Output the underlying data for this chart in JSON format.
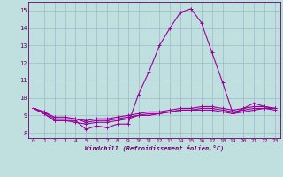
{
  "xlabel": "Windchill (Refroidissement éolien,°C)",
  "background_color": "#c0e0e0",
  "grid_color": "#a0b8c8",
  "line_color": "#990099",
  "xlim": [
    -0.5,
    23.5
  ],
  "ylim": [
    7.7,
    15.5
  ],
  "xticks": [
    0,
    1,
    2,
    3,
    4,
    5,
    6,
    7,
    8,
    9,
    10,
    11,
    12,
    13,
    14,
    15,
    16,
    17,
    18,
    19,
    20,
    21,
    22,
    23
  ],
  "yticks": [
    8,
    9,
    10,
    11,
    12,
    13,
    14,
    15
  ],
  "series": [
    [
      9.4,
      9.1,
      8.7,
      8.7,
      8.7,
      8.2,
      8.4,
      8.3,
      8.5,
      8.5,
      10.2,
      11.5,
      13.0,
      14.0,
      14.9,
      15.1,
      14.3,
      12.6,
      10.9,
      9.1,
      9.4,
      9.7,
      9.5,
      9.4
    ],
    [
      9.4,
      9.1,
      8.7,
      8.7,
      8.6,
      8.5,
      8.6,
      8.6,
      8.7,
      8.8,
      9.0,
      9.0,
      9.1,
      9.2,
      9.3,
      9.3,
      9.3,
      9.3,
      9.2,
      9.1,
      9.2,
      9.3,
      9.4,
      9.3
    ],
    [
      9.4,
      9.2,
      8.8,
      8.8,
      8.8,
      8.6,
      8.7,
      8.7,
      8.8,
      8.9,
      9.0,
      9.1,
      9.1,
      9.2,
      9.3,
      9.3,
      9.4,
      9.4,
      9.3,
      9.2,
      9.3,
      9.4,
      9.4,
      9.4
    ],
    [
      9.4,
      9.2,
      8.9,
      8.9,
      8.8,
      8.7,
      8.8,
      8.8,
      8.9,
      9.0,
      9.1,
      9.2,
      9.2,
      9.3,
      9.4,
      9.4,
      9.5,
      9.5,
      9.4,
      9.3,
      9.4,
      9.5,
      9.5,
      9.4
    ]
  ]
}
